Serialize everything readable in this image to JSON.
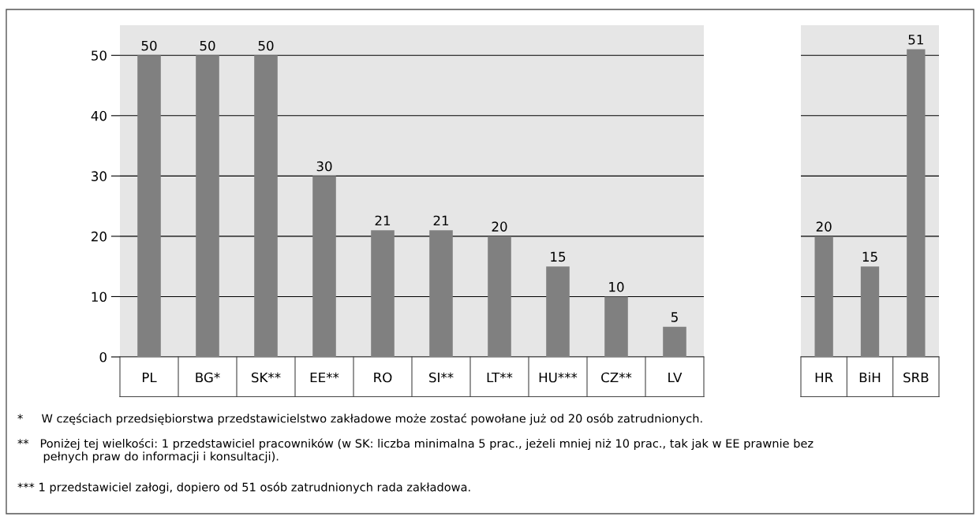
{
  "chart_data": [
    {
      "type": "bar",
      "categories": [
        "PL",
        "BG*",
        "SK**",
        "EE**",
        "RO",
        "SI**",
        "LT**",
        "HU***",
        "CZ**",
        "LV"
      ],
      "values": [
        50,
        50,
        50,
        30,
        21,
        21,
        20,
        15,
        10,
        5
      ],
      "color": "#808080",
      "ylim": [
        0,
        55
      ],
      "yticks": [
        0,
        10,
        20,
        30,
        40,
        50
      ],
      "grid": "y",
      "data_labels": true,
      "annotations": [
        "*     W częściach przedsiębiorstwa przedstawicielstwo zakładowe może zostać powołane już od 20 osób zatrudnionych.",
        "**   Poniżej tej wielkości: 1 przedstawiciel pracowników (w SK: liczba minimalna 5 prac., jeżeli mniej niż 10 prac., tak jak w EE prawnie bez\n       pełnych praw do informacji i konsultacji).",
        "*** 1 przedstawiciel załogi, dopiero od 51 osób zatrudnionych rada zakładowa."
      ]
    },
    {
      "type": "bar",
      "categories": [
        "HR",
        "BiH",
        "SRB"
      ],
      "values": [
        20,
        15,
        51
      ],
      "color": "#808080",
      "ylim": [
        0,
        55
      ],
      "yticks": [
        0,
        10,
        20,
        30,
        40,
        50
      ],
      "grid": "y",
      "data_labels": true,
      "tick_labels": "x"
    }
  ]
}
